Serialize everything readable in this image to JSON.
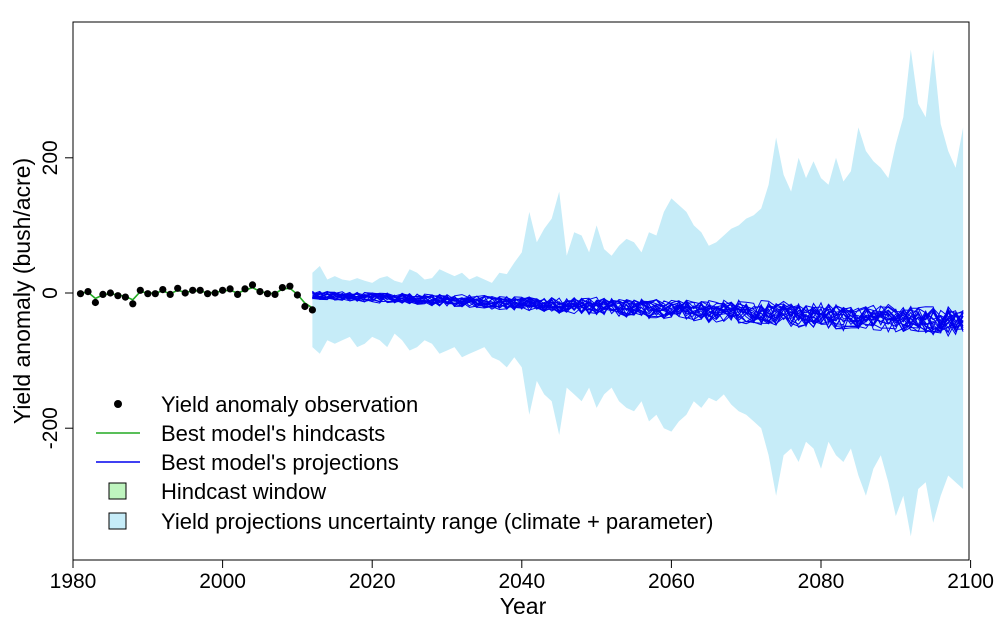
{
  "chart_data": {
    "type": "line",
    "xlabel": "Year",
    "ylabel": "Yield anomaly (bush/acre)",
    "xlim": [
      1980,
      2100
    ],
    "ylim": [
      -400,
      400
    ],
    "x_ticks": [
      1980,
      2000,
      2020,
      2040,
      2060,
      2080,
      2100
    ],
    "y_ticks": [
      -200,
      0,
      200
    ],
    "grid": false,
    "legend_position": "bottom-left",
    "colors": {
      "observation": "#000000",
      "hindcast": "#22aa22",
      "projection": "#0000ee",
      "hindcast_window": "#bff5bf",
      "uncertainty": "#c6ecf8"
    },
    "legend": [
      {
        "symbol": "point",
        "label": "Yield anomaly observation"
      },
      {
        "symbol": "line-green",
        "label": "Best model's hindcasts"
      },
      {
        "symbol": "line-blue",
        "label": "Best model's projections"
      },
      {
        "symbol": "box-green",
        "label": "Hindcast window"
      },
      {
        "symbol": "box-blue",
        "label": "Yield projections uncertainty range (climate + parameter)"
      }
    ],
    "observations": {
      "x": [
        1981,
        1982,
        1983,
        1984,
        1985,
        1986,
        1987,
        1988,
        1989,
        1990,
        1991,
        1992,
        1993,
        1994,
        1995,
        1996,
        1997,
        1998,
        1999,
        2000,
        2001,
        2002,
        2003,
        2004,
        2005,
        2006,
        2007,
        2008,
        2009,
        2010,
        2011,
        2012
      ],
      "y": [
        -1,
        2,
        -14,
        -2,
        0,
        -4,
        -6,
        -16,
        4,
        -1,
        -1,
        5,
        -2,
        7,
        0,
        4,
        4,
        -1,
        0,
        4,
        6,
        -2,
        6,
        12,
        2,
        -1,
        -2,
        8,
        10,
        -3,
        -20,
        -25
      ]
    },
    "hindcast": {
      "x": [
        1981,
        1982,
        1983,
        1984,
        1985,
        1986,
        1987,
        1988,
        1989,
        1990,
        1991,
        1992,
        1993,
        1994,
        1995,
        1996,
        1997,
        1998,
        1999,
        2000,
        2001,
        2002,
        2003,
        2004,
        2005,
        2006,
        2007,
        2008,
        2009,
        2010,
        2011,
        2012
      ],
      "y": [
        0,
        1,
        -8,
        -3,
        -1,
        -3,
        -5,
        -10,
        2,
        0,
        0,
        3,
        -1,
        4,
        1,
        3,
        3,
        0,
        1,
        3,
        4,
        0,
        4,
        8,
        2,
        0,
        -1,
        6,
        7,
        -2,
        -15,
        -22
      ]
    },
    "projections": {
      "x_start": 2012,
      "x_end": 2099,
      "n_series": 20,
      "mean_start": -3,
      "mean_end": -42
    },
    "uncertainty_band": {
      "x": [
        2012,
        2013,
        2014,
        2015,
        2016,
        2017,
        2018,
        2019,
        2020,
        2021,
        2022,
        2023,
        2024,
        2025,
        2026,
        2027,
        2028,
        2029,
        2030,
        2031,
        2032,
        2033,
        2034,
        2035,
        2036,
        2037,
        2038,
        2039,
        2040,
        2041,
        2042,
        2043,
        2044,
        2045,
        2046,
        2047,
        2048,
        2049,
        2050,
        2051,
        2052,
        2053,
        2054,
        2055,
        2056,
        2057,
        2058,
        2059,
        2060,
        2061,
        2062,
        2063,
        2064,
        2065,
        2066,
        2067,
        2068,
        2069,
        2070,
        2071,
        2072,
        2073,
        2074,
        2075,
        2076,
        2077,
        2078,
        2079,
        2080,
        2081,
        2082,
        2083,
        2084,
        2085,
        2086,
        2087,
        2088,
        2089,
        2090,
        2091,
        2092,
        2093,
        2094,
        2095,
        2096,
        2097,
        2098,
        2099
      ],
      "upper": [
        30,
        40,
        20,
        25,
        20,
        18,
        22,
        18,
        15,
        22,
        25,
        18,
        15,
        35,
        30,
        20,
        22,
        35,
        30,
        25,
        30,
        20,
        25,
        20,
        15,
        30,
        28,
        45,
        60,
        120,
        75,
        95,
        110,
        150,
        55,
        90,
        85,
        60,
        100,
        65,
        55,
        70,
        80,
        75,
        60,
        90,
        85,
        120,
        140,
        130,
        120,
        100,
        90,
        70,
        75,
        85,
        95,
        100,
        110,
        115,
        125,
        160,
        230,
        175,
        150,
        200,
        170,
        195,
        170,
        160,
        200,
        165,
        180,
        245,
        210,
        195,
        185,
        170,
        220,
        260,
        360,
        280,
        260,
        360,
        250,
        210,
        185,
        245
      ],
      "lower": [
        -80,
        -90,
        -70,
        -75,
        -70,
        -65,
        -80,
        -75,
        -65,
        -70,
        -80,
        -60,
        -70,
        -85,
        -80,
        -70,
        -75,
        -90,
        -85,
        -80,
        -95,
        -90,
        -85,
        -80,
        -95,
        -100,
        -110,
        -95,
        -110,
        -180,
        -130,
        -150,
        -160,
        -210,
        -140,
        -150,
        -160,
        -140,
        -170,
        -150,
        -140,
        -160,
        -170,
        -175,
        -160,
        -190,
        -180,
        -200,
        -205,
        -190,
        -180,
        -160,
        -170,
        -155,
        -160,
        -150,
        -165,
        -175,
        -180,
        -190,
        -200,
        -240,
        -300,
        -240,
        -230,
        -250,
        -220,
        -230,
        -260,
        -220,
        -240,
        -250,
        -230,
        -270,
        -300,
        -260,
        -240,
        -280,
        -330,
        -300,
        -360,
        -290,
        -280,
        -340,
        -300,
        -270,
        -280,
        -290
      ]
    }
  }
}
